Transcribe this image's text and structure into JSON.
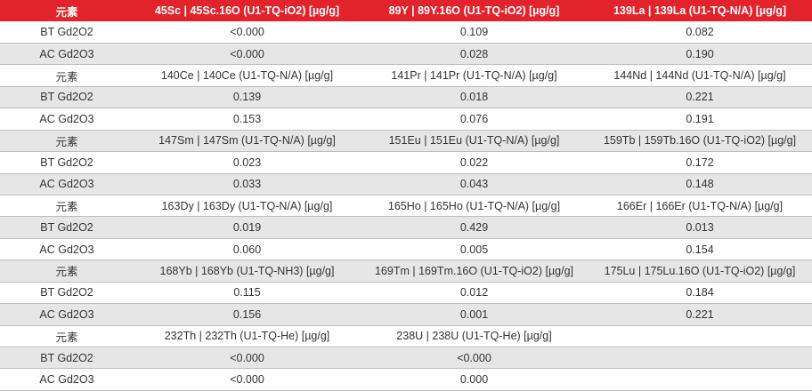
{
  "table": {
    "header": [
      "元素",
      "45Sc | 45Sc.16O (U1-TQ-iO2) [µg/g]",
      "89Y | 89Y.16O (U1-TQ-iO2) [µg/g]",
      "139La | 139La (U1-TQ-N/A) [µg/g]"
    ],
    "rows": [
      [
        "BT Gd2O2",
        "<0.000",
        "0.109",
        "0.082"
      ],
      [
        "AC Gd2O3",
        "<0.000",
        "0.028",
        "0.190"
      ],
      [
        "元素",
        "140Ce | 140Ce (U1-TQ-N/A) [µg/g]",
        "141Pr | 141Pr (U1-TQ-N/A) [µg/g]",
        "144Nd | 144Nd (U1-TQ-N/A) [µg/g]"
      ],
      [
        "BT Gd2O2",
        "0.139",
        "0.018",
        "0.221"
      ],
      [
        "AC Gd2O3",
        "0.153",
        "0.076",
        "0.191"
      ],
      [
        "元素",
        "147Sm | 147Sm (U1-TQ-N/A) [µg/g]",
        "151Eu | 151Eu (U1-TQ-N/A) [µg/g]",
        "159Tb | 159Tb.16O (U1-TQ-iO2) [µg/g]"
      ],
      [
        "BT Gd2O2",
        "0.023",
        "0.022",
        "0.172"
      ],
      [
        "AC Gd2O3",
        "0.033",
        "0.043",
        "0.148"
      ],
      [
        "元素",
        "163Dy | 163Dy (U1-TQ-N/A) [µg/g]",
        "165Ho | 165Ho (U1-TQ-N/A) [µg/g]",
        "166Er | 166Er (U1-TQ-N/A) [µg/g]"
      ],
      [
        "BT Gd2O2",
        "0.019",
        "0.429",
        "0.013"
      ],
      [
        "AC Gd2O3",
        "0.060",
        "0.005",
        "0.154"
      ],
      [
        "元素",
        "168Yb | 168Yb (U1-TQ-NH3) [µg/g]",
        "169Tm | 169Tm.16O (U1-TQ-iO2) [µg/g]",
        "175Lu | 175Lu.16O (U1-TQ-iO2) [µg/g]"
      ],
      [
        "BT Gd2O2",
        "0.115",
        "0.012",
        "0.184"
      ],
      [
        "AC Gd2O3",
        "0.156",
        "0.001",
        "0.221"
      ],
      [
        "元素",
        "232Th | 232Th (U1-TQ-He) [µg/g]",
        "238U | 238U (U1-TQ-He) [µg/g]"
      ],
      [
        "BT Gd2O2",
        "<0.000",
        "<0.000"
      ],
      [
        "AC Gd2O3",
        "<0.000",
        "0.000"
      ]
    ]
  }
}
